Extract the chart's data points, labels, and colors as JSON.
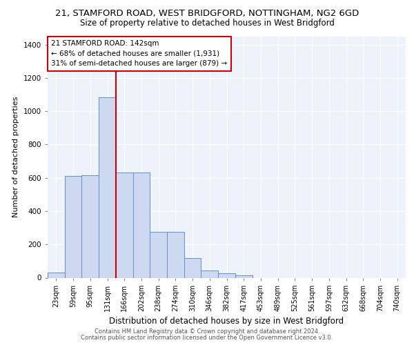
{
  "title_line1": "21, STAMFORD ROAD, WEST BRIDGFORD, NOTTINGHAM, NG2 6GD",
  "title_line2": "Size of property relative to detached houses in West Bridgford",
  "xlabel": "Distribution of detached houses by size in West Bridgford",
  "ylabel": "Number of detached properties",
  "footer_line1": "Contains HM Land Registry data © Crown copyright and database right 2024.",
  "footer_line2": "Contains public sector information licensed under the Open Government Licence v3.0.",
  "bin_labels": [
    "23sqm",
    "59sqm",
    "95sqm",
    "131sqm",
    "166sqm",
    "202sqm",
    "238sqm",
    "274sqm",
    "310sqm",
    "346sqm",
    "382sqm",
    "417sqm",
    "453sqm",
    "489sqm",
    "525sqm",
    "561sqm",
    "597sqm",
    "632sqm",
    "668sqm",
    "704sqm",
    "740sqm"
  ],
  "bar_values": [
    30,
    610,
    615,
    1085,
    630,
    630,
    275,
    275,
    120,
    45,
    25,
    15,
    0,
    0,
    0,
    0,
    0,
    0,
    0,
    0,
    0
  ],
  "bar_color": "#ccd9f0",
  "bar_edge_color": "#6090c8",
  "vline_color": "#cc0000",
  "vline_x_index": 3,
  "annotation_text": "21 STAMFORD ROAD: 142sqm\n← 68% of detached houses are smaller (1,931)\n31% of semi-detached houses are larger (879) →",
  "annotation_box_color": "#cc0000",
  "ylim": [
    0,
    1450
  ],
  "yticks": [
    0,
    200,
    400,
    600,
    800,
    1000,
    1200,
    1400
  ],
  "background_color": "#edf2fb",
  "grid_color": "#ffffff",
  "title_fontsize": 9.5,
  "subtitle_fontsize": 8.5,
  "ylabel_fontsize": 8,
  "xlabel_fontsize": 8.5,
  "tick_fontsize": 7,
  "annotation_fontsize": 7.5,
  "footer_fontsize": 6
}
